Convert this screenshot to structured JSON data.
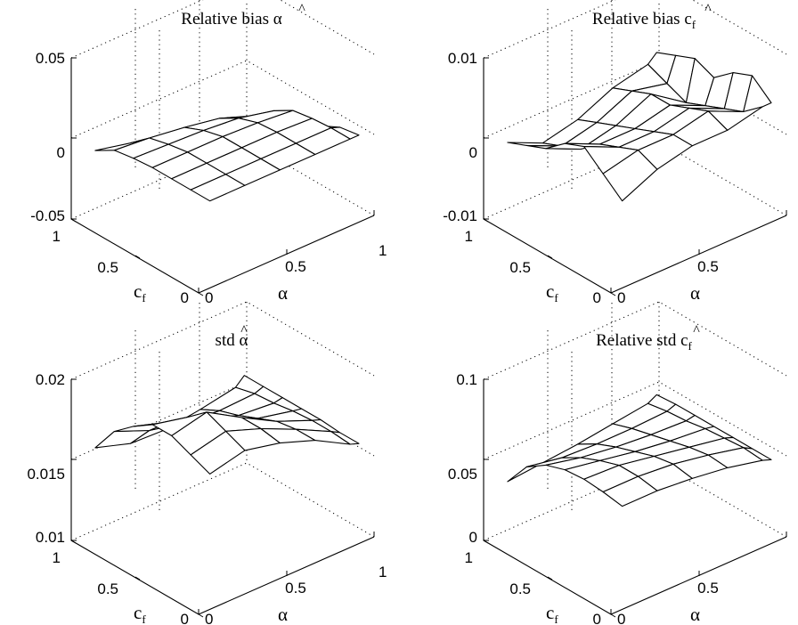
{
  "chart_data": [
    {
      "type": "surface",
      "title": "Relative bias",
      "title_symbol": "α",
      "xlabel_symbol": "c",
      "xlabel_subscript": "f",
      "ylabel_symbol": "α",
      "x_ticks": [
        "0",
        "0.5",
        "1"
      ],
      "y_ticks": [
        "0",
        "0.5",
        "1"
      ],
      "z_ticks": [
        "-0.05",
        "0",
        "0.05"
      ],
      "zlim": [
        -0.05,
        0.05
      ],
      "cf_values": [
        0.05,
        0.2,
        0.35,
        0.5,
        0.65,
        0.8,
        0.95
      ],
      "alpha_values": [
        0.1,
        0.3,
        0.5,
        0.7,
        0.9,
        0.95
      ],
      "z": [
        [
          0.0,
          0.0,
          0.0,
          0.0,
          0.0,
          0.0
        ],
        [
          0.0,
          0.0,
          0.0,
          0.0,
          0.0,
          -0.002
        ],
        [
          0.0,
          0.0,
          0.0,
          0.0,
          -0.001,
          -0.008
        ],
        [
          0.0,
          0.0,
          0.0,
          -0.001,
          -0.003,
          -0.015
        ],
        [
          -0.001,
          -0.002,
          -0.003,
          -0.005,
          -0.01,
          -0.028
        ],
        [
          -0.003,
          -0.005,
          -0.008,
          -0.012,
          -0.02,
          -0.04
        ],
        [
          -0.01,
          -0.015,
          -0.02,
          -0.025,
          -0.03,
          -0.042
        ]
      ]
    },
    {
      "type": "surface",
      "title": "Relative bias",
      "title_symbol": "c",
      "title_subscript": "f",
      "xlabel_symbol": "c",
      "xlabel_subscript": "f",
      "ylabel_symbol": "α",
      "x_ticks": [
        "0",
        "0.5",
        "1"
      ],
      "y_ticks": [
        "0",
        "0.5"
      ],
      "z_ticks": [
        "-0.01",
        "0",
        "0.01"
      ],
      "zlim": [
        -0.01,
        0.01
      ],
      "cf_values": [
        0.05,
        0.2,
        0.35,
        0.5,
        0.65,
        0.8,
        0.95
      ],
      "alpha_values": [
        0.1,
        0.3,
        0.5,
        0.7,
        0.9,
        0.95
      ],
      "z": [
        [
          0.0,
          0.002,
          0.003,
          0.003,
          0.004,
          0.004
        ],
        [
          0.002,
          0.003,
          0.003,
          0.004,
          0.002,
          0.006
        ],
        [
          0.004,
          0.002,
          0.002,
          0.003,
          0.001,
          0.005
        ],
        [
          0.003,
          0.001,
          0.001,
          0.002,
          0.0,
          0.003
        ],
        [
          0.001,
          -0.001,
          0.0,
          0.002,
          -0.001,
          0.004
        ],
        [
          0.0,
          -0.002,
          -0.001,
          0.001,
          0.0,
          0.003
        ],
        [
          -0.001,
          -0.003,
          -0.002,
          0.0,
          0.001,
          0.002
        ]
      ]
    },
    {
      "type": "surface",
      "title": "std",
      "title_symbol": "α",
      "xlabel_symbol": "c",
      "xlabel_subscript": "f",
      "ylabel_symbol": "α",
      "x_ticks": [
        "0",
        "0.5",
        "1"
      ],
      "y_ticks": [
        "0",
        "0.5",
        "1"
      ],
      "z_ticks": [
        "0.01",
        "0.015",
        "0.02"
      ],
      "zlim": [
        0.01,
        0.02
      ],
      "cf_values": [
        0.05,
        0.2,
        0.35,
        0.5,
        0.65,
        0.8,
        0.95
      ],
      "alpha_values": [
        0.1,
        0.3,
        0.5,
        0.7,
        0.9,
        0.95
      ],
      "z": [
        [
          0.018,
          0.0185,
          0.018,
          0.0172,
          0.016,
          0.0158
        ],
        [
          0.0185,
          0.019,
          0.0182,
          0.0172,
          0.0161,
          0.0158
        ],
        [
          0.019,
          0.0195,
          0.0182,
          0.017,
          0.0161,
          0.0159
        ],
        [
          0.019,
          0.0185,
          0.0175,
          0.0165,
          0.016,
          0.0159
        ],
        [
          0.0182,
          0.0175,
          0.0167,
          0.016,
          0.0158,
          0.0159
        ],
        [
          0.0172,
          0.0163,
          0.0158,
          0.0156,
          0.0157,
          0.0159
        ],
        [
          0.0155,
          0.0148,
          0.0147,
          0.015,
          0.0154,
          0.0159
        ]
      ]
    },
    {
      "type": "surface",
      "title": "Relative std",
      "title_symbol": "c",
      "title_subscript": "f",
      "xlabel_symbol": "c",
      "xlabel_subscript": "f",
      "ylabel_symbol": "α",
      "x_ticks": [
        "0",
        "0.5",
        "1"
      ],
      "y_ticks": [
        "0",
        "0.5"
      ],
      "z_ticks": [
        "0",
        "0.05",
        "0.1"
      ],
      "zlim": [
        0.0,
        0.1
      ],
      "cf_values": [
        0.05,
        0.2,
        0.35,
        0.5,
        0.65,
        0.8,
        0.95
      ],
      "alpha_values": [
        0.1,
        0.3,
        0.5,
        0.7,
        0.9,
        0.95
      ],
      "z": [
        [
          0.06,
          0.06,
          0.058,
          0.055,
          0.05,
          0.048
        ],
        [
          0.062,
          0.062,
          0.06,
          0.056,
          0.051,
          0.048
        ],
        [
          0.063,
          0.062,
          0.058,
          0.054,
          0.05,
          0.048
        ],
        [
          0.062,
          0.058,
          0.054,
          0.051,
          0.049,
          0.048
        ],
        [
          0.058,
          0.053,
          0.05,
          0.048,
          0.047,
          0.048
        ],
        [
          0.05,
          0.046,
          0.045,
          0.045,
          0.046,
          0.048
        ],
        [
          0.034,
          0.036,
          0.038,
          0.041,
          0.044,
          0.047
        ]
      ]
    }
  ]
}
